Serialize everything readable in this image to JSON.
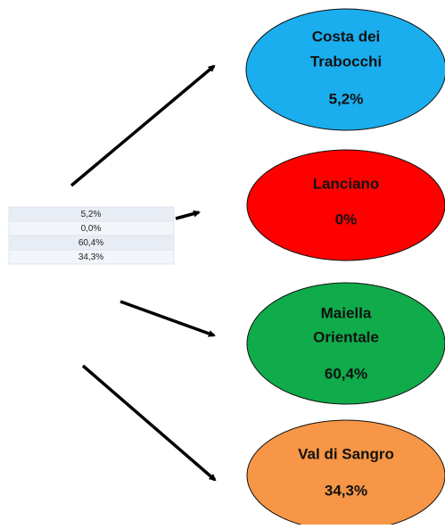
{
  "table": {
    "rows": [
      [
        "5,2%"
      ],
      [
        "0,0%"
      ],
      [
        "60,4%"
      ],
      [
        "34,3%"
      ]
    ]
  },
  "nodes": [
    {
      "label": [
        "Costa dei",
        "Trabocchi"
      ],
      "value": "5,2%"
    },
    {
      "label": [
        "Lanciano"
      ],
      "value": "0%"
    },
    {
      "label": [
        "Maiella",
        "Orientale"
      ],
      "value": "60,4%"
    },
    {
      "label": [
        "Val di Sangro"
      ],
      "value": "34,3%"
    }
  ]
}
